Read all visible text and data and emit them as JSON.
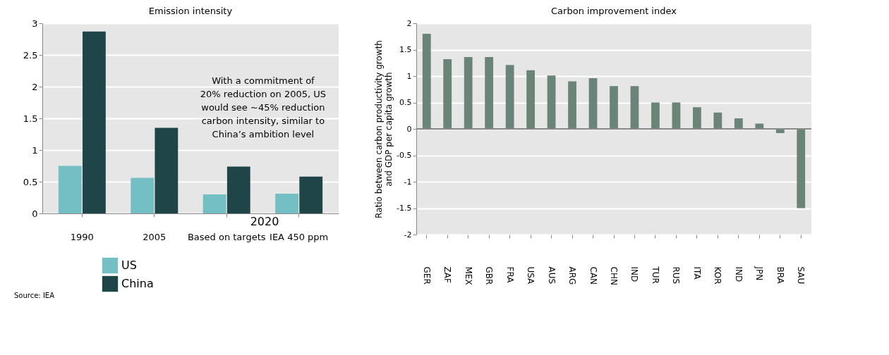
{
  "chart_data": [
    {
      "type": "bar",
      "title": "Emission intensity",
      "categories": [
        "1990",
        "2005",
        "Based on targets",
        "IEA 450 ppm"
      ],
      "series": [
        {
          "name": "US",
          "color": "#73bfc4",
          "values": [
            0.75,
            0.56,
            0.3,
            0.31
          ]
        },
        {
          "name": "China",
          "color": "#1f4548",
          "values": [
            2.87,
            1.35,
            0.74,
            0.58
          ]
        }
      ],
      "ylim": [
        0,
        3
      ],
      "yticks": [
        0,
        0.5,
        1,
        1.5,
        2,
        2.5,
        3
      ],
      "grid": "y",
      "legend": "bottom",
      "annotations": [
        "With a commitment of\n20% reduction on 2005, US\nwould see ~45% reduction\ncarbon intensity, similar to\nChina’s ambition level",
        "2020",
        "Source: IEA"
      ]
    },
    {
      "type": "bar",
      "title": "Carbon improvement index",
      "ylabel": "Ratio between carbon productivity growth and GDP per capita growth",
      "categories": [
        "GER",
        "ZAF",
        "MEX",
        "GBR",
        "FRA",
        "USA",
        "AUS",
        "ARG",
        "CAN",
        "CHN",
        "IND",
        "TUR",
        "RUS",
        "ITA",
        "KOR",
        "IND",
        "JPN",
        "BRA",
        "SAU"
      ],
      "values": [
        1.8,
        1.32,
        1.36,
        1.36,
        1.21,
        1.11,
        1.01,
        0.9,
        0.96,
        0.81,
        0.81,
        0.5,
        0.5,
        0.41,
        0.31,
        0.2,
        0.1,
        -0.08,
        -1.5
      ],
      "color": "#6b8478",
      "ylim": [
        -2,
        2
      ],
      "yticks": [
        -2,
        -1.5,
        -1,
        -0.5,
        0,
        0.5,
        1,
        1.5,
        2
      ],
      "grid": "y"
    }
  ]
}
